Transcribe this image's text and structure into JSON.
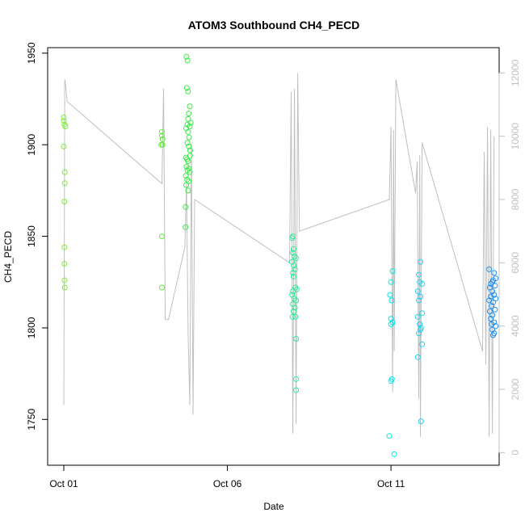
{
  "chart_data": {
    "type": "scatter",
    "title": "ATOM3 Southbound CH4_PECD",
    "xlabel": "Date",
    "ylabel": "CH4_PECD",
    "x_ticks": [
      {
        "label": "Oct 01",
        "value": 1
      },
      {
        "label": "Oct 06",
        "value": 6
      },
      {
        "label": "Oct 11",
        "value": 11
      }
    ],
    "xlim": [
      1,
      14.8
    ],
    "ylim": [
      1725,
      1953
    ],
    "y_ticks": [
      1750,
      1800,
      1850,
      1900,
      1950
    ],
    "y2_ticks": [
      0,
      2000,
      4000,
      6000,
      8000,
      10000,
      12000
    ],
    "y2lim": [
      -400,
      12800
    ],
    "grid": false,
    "colors": {
      "line": "#c0c0c0",
      "frame": "#000000",
      "right_axis": "#c0c0c0",
      "series_palette": [
        "#7FEA3B",
        "#3BEA58",
        "#2EEA9A",
        "#00EAEA",
        "#22D0F0",
        "#1E90F0"
      ]
    },
    "series": [
      {
        "color": "#7FEA3B",
        "points": [
          [
            1.0,
            1915
          ],
          [
            1.0,
            1913
          ],
          [
            1.02,
            1911
          ],
          [
            1.05,
            1910
          ],
          [
            1.0,
            1899
          ],
          [
            1.03,
            1885
          ],
          [
            1.03,
            1879
          ],
          [
            1.02,
            1869
          ],
          [
            1.02,
            1844
          ],
          [
            1.02,
            1835
          ],
          [
            1.02,
            1826
          ],
          [
            1.03,
            1822
          ]
        ]
      },
      {
        "color": "#5FEA3B",
        "points": [
          [
            4.0,
            1907
          ],
          [
            4.0,
            1905
          ],
          [
            4.02,
            1903
          ],
          [
            3.98,
            1900
          ],
          [
            4.02,
            1900
          ],
          [
            4.0,
            1850
          ],
          [
            4.0,
            1822
          ]
        ]
      },
      {
        "color": "#3BEA4A",
        "points": [
          [
            4.75,
            1948
          ],
          [
            4.78,
            1946
          ],
          [
            4.76,
            1931
          ],
          [
            4.8,
            1929
          ],
          [
            4.85,
            1921
          ],
          [
            4.82,
            1917
          ],
          [
            4.8,
            1914
          ],
          [
            4.88,
            1912
          ],
          [
            4.78,
            1911
          ],
          [
            4.85,
            1910
          ],
          [
            4.74,
            1909
          ],
          [
            4.8,
            1907
          ],
          [
            4.83,
            1904
          ],
          [
            4.78,
            1901
          ],
          [
            4.82,
            1899
          ],
          [
            4.86,
            1897
          ],
          [
            4.73,
            1893
          ],
          [
            4.77,
            1892
          ],
          [
            4.8,
            1891
          ],
          [
            4.86,
            1894
          ],
          [
            4.75,
            1888
          ],
          [
            4.82,
            1887
          ],
          [
            4.78,
            1886
          ],
          [
            4.85,
            1885
          ],
          [
            4.73,
            1883
          ],
          [
            4.77,
            1881
          ],
          [
            4.82,
            1880
          ],
          [
            4.74,
            1878
          ],
          [
            4.8,
            1875
          ],
          [
            4.72,
            1866
          ],
          [
            4.72,
            1855
          ]
        ]
      },
      {
        "color": "#2EEA9A",
        "points": [
          [
            8.0,
            1850
          ],
          [
            7.98,
            1849
          ],
          [
            8.02,
            1843
          ],
          [
            8.0,
            1841
          ],
          [
            8.05,
            1839
          ],
          [
            8.1,
            1838
          ],
          [
            7.97,
            1836
          ],
          [
            8.03,
            1834
          ],
          [
            8.06,
            1832
          ],
          [
            8.0,
            1830
          ],
          [
            8.02,
            1828
          ],
          [
            8.08,
            1822
          ],
          [
            8.12,
            1821
          ],
          [
            8.0,
            1820
          ],
          [
            7.98,
            1818
          ],
          [
            8.04,
            1816
          ],
          [
            8.1,
            1815
          ],
          [
            8.0,
            1813
          ],
          [
            8.06,
            1811
          ],
          [
            8.02,
            1809
          ],
          [
            8.08,
            1806
          ],
          [
            7.99,
            1806
          ],
          [
            8.1,
            1794
          ],
          [
            8.1,
            1772
          ],
          [
            8.1,
            1766
          ]
        ]
      },
      {
        "color": "#00EAEA",
        "points": [
          [
            11.05,
            1831
          ],
          [
            11.0,
            1825
          ],
          [
            10.97,
            1818
          ],
          [
            11.02,
            1815
          ],
          [
            11.0,
            1805
          ],
          [
            11.05,
            1803
          ],
          [
            11.0,
            1802
          ],
          [
            11.03,
            1772
          ],
          [
            11.0,
            1771
          ],
          [
            10.95,
            1741
          ],
          [
            11.1,
            1731
          ]
        ]
      },
      {
        "color": "#22D0F0",
        "points": [
          [
            11.9,
            1836
          ],
          [
            11.85,
            1829
          ],
          [
            11.88,
            1825
          ],
          [
            11.95,
            1824
          ],
          [
            11.82,
            1820
          ],
          [
            11.9,
            1817
          ],
          [
            11.85,
            1815
          ],
          [
            11.95,
            1808
          ],
          [
            11.82,
            1806
          ],
          [
            11.88,
            1802
          ],
          [
            11.92,
            1800
          ],
          [
            11.85,
            1797
          ],
          [
            11.9,
            1799
          ],
          [
            11.95,
            1791
          ],
          [
            11.82,
            1784
          ],
          [
            11.92,
            1749
          ]
        ]
      },
      {
        "color": "#1E90F0",
        "points": [
          [
            14.0,
            1832
          ],
          [
            14.15,
            1830
          ],
          [
            14.2,
            1827
          ],
          [
            14.12,
            1826
          ],
          [
            14.1,
            1825
          ],
          [
            14.05,
            1824
          ],
          [
            14.18,
            1823
          ],
          [
            14.02,
            1822
          ],
          [
            14.1,
            1820
          ],
          [
            14.15,
            1818
          ],
          [
            14.05,
            1817
          ],
          [
            14.2,
            1816
          ],
          [
            14.0,
            1815
          ],
          [
            14.12,
            1814
          ],
          [
            14.08,
            1812
          ],
          [
            14.18,
            1810
          ],
          [
            14.02,
            1809
          ],
          [
            14.1,
            1807
          ],
          [
            14.05,
            1805
          ],
          [
            14.15,
            1803
          ],
          [
            14.08,
            1802
          ],
          [
            14.2,
            1801
          ],
          [
            14.1,
            1799
          ],
          [
            14.15,
            1797
          ],
          [
            14.12,
            1796
          ]
        ]
      }
    ],
    "line_series": {
      "axis": "right",
      "points": [
        [
          1.0,
          1500
        ],
        [
          1.03,
          11800
        ],
        [
          1.06,
          11600
        ],
        [
          1.1,
          11100
        ],
        [
          4.0,
          8500
        ],
        [
          4.05,
          11500
        ],
        [
          4.1,
          4200
        ],
        [
          4.2,
          4200
        ],
        [
          4.7,
          6500
        ],
        [
          4.75,
          8500
        ],
        [
          4.8,
          3800
        ],
        [
          4.85,
          1500
        ],
        [
          4.9,
          9800
        ],
        [
          4.95,
          1200
        ],
        [
          5.0,
          8000
        ],
        [
          7.9,
          6000
        ],
        [
          7.95,
          11400
        ],
        [
          8.0,
          600
        ],
        [
          8.05,
          11500
        ],
        [
          8.1,
          900
        ],
        [
          8.15,
          12000
        ],
        [
          8.2,
          7000
        ],
        [
          10.95,
          8000
        ],
        [
          11.0,
          10300
        ],
        [
          11.05,
          1900
        ],
        [
          11.08,
          10200
        ],
        [
          11.1,
          3200
        ],
        [
          11.15,
          11800
        ],
        [
          11.75,
          8200
        ],
        [
          11.8,
          9200
        ],
        [
          11.85,
          1700
        ],
        [
          11.88,
          9400
        ],
        [
          11.9,
          500
        ],
        [
          11.95,
          9800
        ],
        [
          13.8,
          3200
        ],
        [
          13.85,
          9500
        ],
        [
          13.9,
          2800
        ],
        [
          13.95,
          10300
        ],
        [
          14.0,
          500
        ],
        [
          14.05,
          10200
        ],
        [
          14.1,
          600
        ],
        [
          14.15,
          10000
        ]
      ]
    }
  }
}
